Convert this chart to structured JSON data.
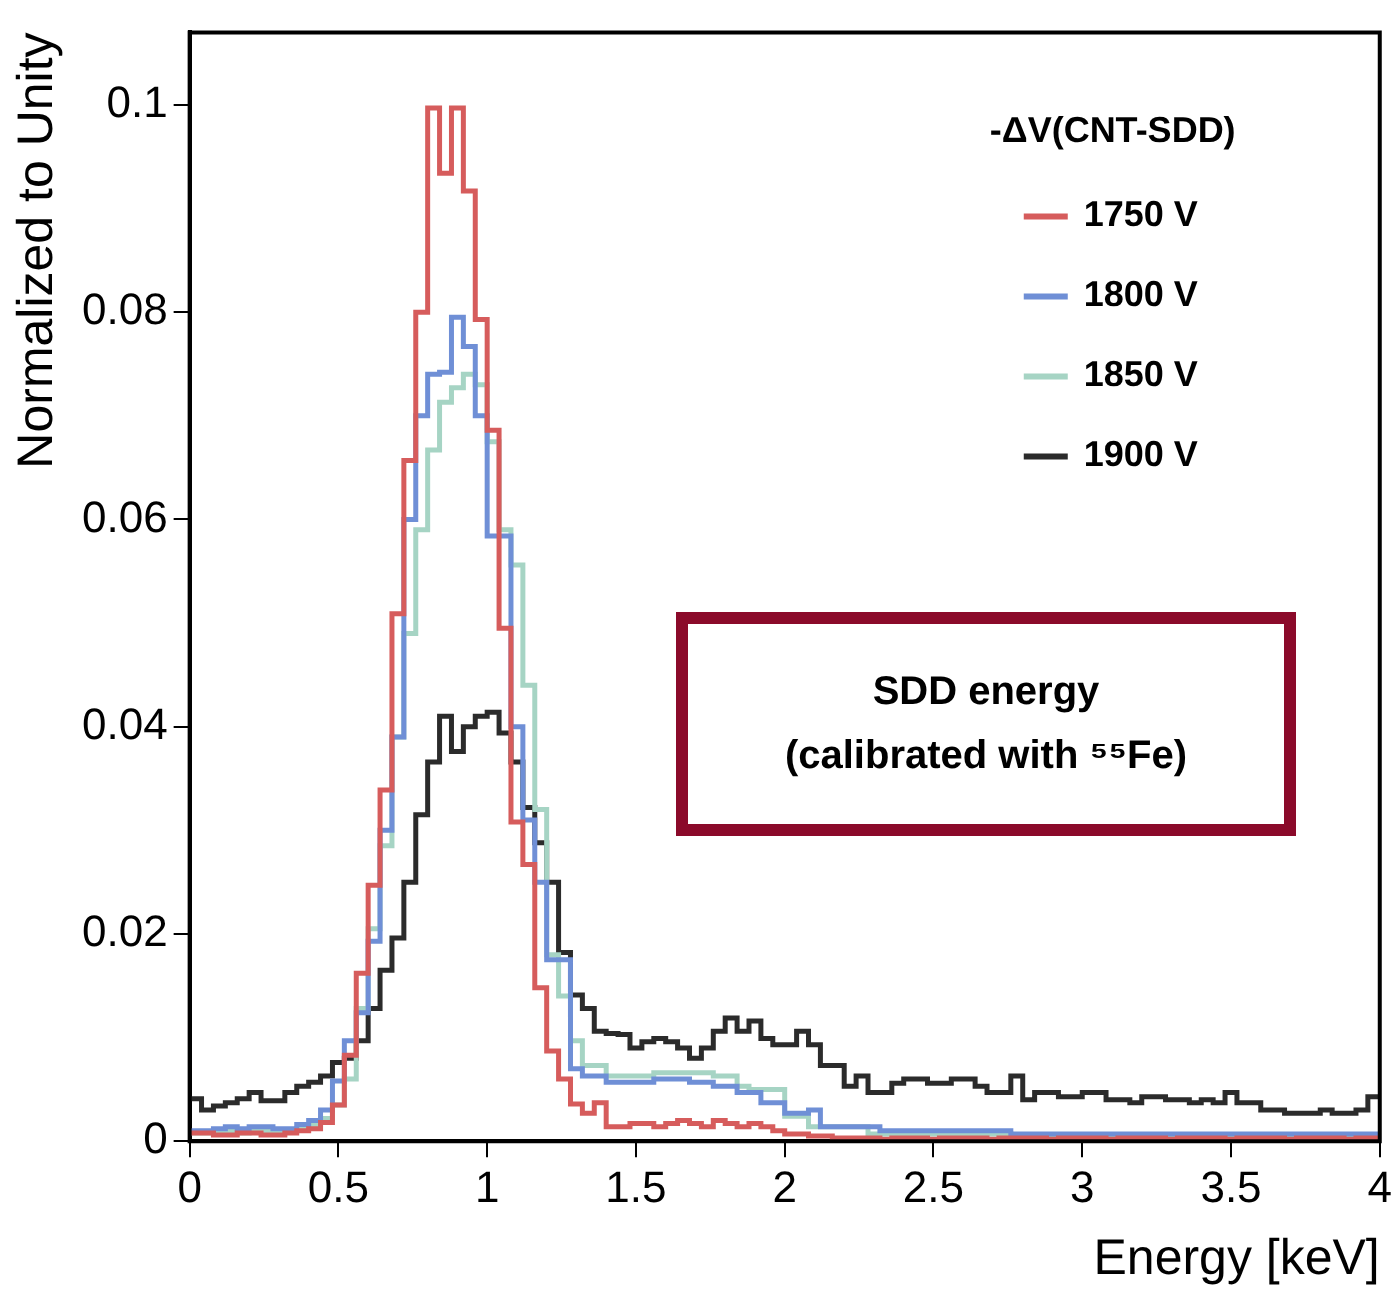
{
  "chart_data": {
    "type": "histogram",
    "xlabel": "Energy [keV]",
    "ylabel": "Normalized to Unity",
    "legend_title": "-ΔV(CNT-SDD)",
    "legend": "top right",
    "annotations": [
      "SDD energy",
      "(calibrated with ⁵⁵Fe)"
    ],
    "xlim": [
      0,
      4
    ],
    "xticks": [
      0,
      0.5,
      1,
      1.5,
      2,
      2.5,
      3,
      3.5,
      4
    ],
    "ylim": [
      0,
      0.107
    ],
    "yticks": [
      0,
      0.02,
      0.04,
      0.06,
      0.08,
      0.1
    ],
    "bins": [
      0,
      0.04,
      0.08,
      0.12,
      0.16,
      0.2,
      0.24,
      0.28,
      0.32,
      0.36,
      0.4,
      0.44,
      0.48,
      0.52,
      0.56,
      0.6,
      0.64,
      0.68,
      0.72,
      0.76,
      0.8,
      0.84,
      0.88,
      0.92,
      0.96,
      1,
      1.04,
      1.08,
      1.12,
      1.16,
      1.2,
      1.24,
      1.28,
      1.32,
      1.36,
      1.4,
      1.44,
      1.48,
      1.52,
      1.56,
      1.6,
      1.64,
      1.68,
      1.72,
      1.76,
      1.8,
      1.84,
      1.88,
      1.92,
      1.96,
      2,
      2.04,
      2.08,
      2.12,
      2.16,
      2.2,
      2.24,
      2.28,
      2.32,
      2.36,
      2.4,
      2.44,
      2.48,
      2.52,
      2.56,
      2.6,
      2.64,
      2.68,
      2.72,
      2.76,
      2.8,
      2.84,
      2.88,
      2.92,
      2.96,
      3,
      3.04,
      3.08,
      3.12,
      3.16,
      3.2,
      3.24,
      3.28,
      3.32,
      3.36,
      3.4,
      3.44,
      3.48,
      3.52,
      3.56,
      3.6,
      3.64,
      3.68,
      3.72,
      3.76,
      3.8,
      3.84,
      3.88,
      3.92,
      3.96,
      4
    ],
    "series": [
      {
        "name": "1750 V",
        "color": "#d65c5c",
        "values": [
          0.0008,
          0.0008,
          0.0006,
          0.0006,
          0.0008,
          0.0008,
          0.0006,
          0.0006,
          0.0008,
          0.001,
          0.0012,
          0.0018,
          0.0035,
          0.0083,
          0.0162,
          0.0247,
          0.0339,
          0.0509,
          0.0657,
          0.08,
          0.0997,
          0.0934,
          0.0997,
          0.0917,
          0.0793,
          0.0686,
          0.0495,
          0.0308,
          0.0267,
          0.0148,
          0.0087,
          0.006,
          0.0036,
          0.0027,
          0.0037,
          0.0014,
          0.0014,
          0.0017,
          0.0017,
          0.0014,
          0.0017,
          0.002,
          0.0017,
          0.0014,
          0.002,
          0.0017,
          0.0014,
          0.0017,
          0.0014,
          0.001,
          0.0007,
          0.0007,
          0.0005,
          0.0005,
          0.0003,
          0.0003,
          0.0003,
          0.0003,
          0.0002,
          0.0003,
          0.0003,
          0.0003,
          0.0002,
          0.0003,
          0.0003,
          0.0003,
          0.0003,
          0.0002,
          0.0003,
          0.0003,
          0.0003,
          0.0003,
          0.0002,
          0.0003,
          0.0003,
          0.0003,
          0.0003,
          0.0002,
          0.0003,
          0.0003,
          0.0003,
          0.0003,
          0.0002,
          0.0003,
          0.0003,
          0.0003,
          0.0003,
          0.0002,
          0.0003,
          0.0003,
          0.0003,
          0.0003,
          0.0002,
          0.0003,
          0.0003,
          0.0003,
          0.0003,
          0.0002,
          0.0003,
          0.0003
        ]
      },
      {
        "name": "1800 V",
        "color": "#6f8fd6",
        "values": [
          0.001,
          0.001,
          0.0012,
          0.0014,
          0.0012,
          0.0014,
          0.0014,
          0.0012,
          0.0012,
          0.0016,
          0.002,
          0.003,
          0.0058,
          0.0097,
          0.0124,
          0.0193,
          0.03,
          0.039,
          0.06,
          0.07,
          0.074,
          0.0742,
          0.0795,
          0.0767,
          0.07,
          0.0584,
          0.0584,
          0.04,
          0.031,
          0.025,
          0.0175,
          0.0175,
          0.007,
          0.0063,
          0.0063,
          0.0057,
          0.0057,
          0.0057,
          0.0057,
          0.006,
          0.006,
          0.006,
          0.0057,
          0.0057,
          0.0053,
          0.0053,
          0.0047,
          0.0047,
          0.0037,
          0.0037,
          0.0027,
          0.0027,
          0.003,
          0.0014,
          0.0014,
          0.0014,
          0.0014,
          0.0014,
          0.001,
          0.001,
          0.001,
          0.001,
          0.001,
          0.001,
          0.001,
          0.001,
          0.001,
          0.001,
          0.001,
          0.0007,
          0.0007,
          0.0007,
          0.0007,
          0.0007,
          0.0007,
          0.0007,
          0.0007,
          0.0007,
          0.0007,
          0.0007,
          0.0007,
          0.0007,
          0.0007,
          0.0007,
          0.0007,
          0.0007,
          0.0007,
          0.0007,
          0.0007,
          0.0007,
          0.0007,
          0.0007,
          0.0007,
          0.0007,
          0.0007,
          0.0007,
          0.0007,
          0.0007,
          0.0007,
          0.0007
        ]
      },
      {
        "name": "1850 V",
        "color": "#a6d4c4",
        "values": [
          0.0008,
          0.0008,
          0.0008,
          0.001,
          0.0008,
          0.001,
          0.001,
          0.001,
          0.001,
          0.0012,
          0.0016,
          0.0022,
          0.0035,
          0.006,
          0.0128,
          0.0205,
          0.0285,
          0.039,
          0.049,
          0.059,
          0.0667,
          0.0713,
          0.0727,
          0.074,
          0.073,
          0.0675,
          0.059,
          0.0556,
          0.044,
          0.032,
          0.018,
          0.014,
          0.0097,
          0.0073,
          0.0073,
          0.0063,
          0.0063,
          0.0063,
          0.0063,
          0.0066,
          0.0066,
          0.0066,
          0.0066,
          0.0066,
          0.0063,
          0.0063,
          0.0053,
          0.005,
          0.005,
          0.005,
          0.0024,
          0.0024,
          0.0014,
          0.0014,
          0.0014,
          0.0014,
          0.0014,
          0.0007,
          0.0007,
          0.0007,
          0.0007,
          0.0007,
          0.0007,
          0.0007,
          0.0007,
          0.0007,
          0.0007,
          0.0007,
          0.0007,
          0.0005,
          0.0005,
          0.0005,
          0.0005,
          0.0005,
          0.0005,
          0.0005,
          0.0005,
          0.0005,
          0.0005,
          0.0005,
          0.0005,
          0.0005,
          0.0005,
          0.0005,
          0.0005,
          0.0005,
          0.0005,
          0.0005,
          0.0005,
          0.0005,
          0.0005,
          0.0005,
          0.0005,
          0.0005,
          0.0005,
          0.0005,
          0.0005,
          0.0005,
          0.0005,
          0.0005
        ]
      },
      {
        "name": "1900 V",
        "color": "#2b2b2b",
        "values": [
          0.0041,
          0.003,
          0.0034,
          0.0037,
          0.0041,
          0.0047,
          0.0039,
          0.0039,
          0.0047,
          0.0053,
          0.0057,
          0.0063,
          0.0076,
          0.008,
          0.0097,
          0.0128,
          0.0165,
          0.0196,
          0.025,
          0.0315,
          0.0366,
          0.041,
          0.0376,
          0.04,
          0.041,
          0.0414,
          0.0394,
          0.0366,
          0.0322,
          0.0288,
          0.025,
          0.0182,
          0.0141,
          0.0128,
          0.0106,
          0.0104,
          0.0103,
          0.009,
          0.0096,
          0.0099,
          0.0096,
          0.009,
          0.008,
          0.009,
          0.0106,
          0.0119,
          0.0106,
          0.0116,
          0.0099,
          0.0093,
          0.0093,
          0.0106,
          0.0093,
          0.0073,
          0.0073,
          0.0053,
          0.0063,
          0.0047,
          0.0047,
          0.0056,
          0.006,
          0.006,
          0.0056,
          0.0056,
          0.006,
          0.006,
          0.0053,
          0.0047,
          0.0047,
          0.0063,
          0.004,
          0.0047,
          0.0047,
          0.0043,
          0.0043,
          0.0047,
          0.0047,
          0.004,
          0.004,
          0.0037,
          0.0043,
          0.0043,
          0.004,
          0.004,
          0.0037,
          0.004,
          0.0037,
          0.0047,
          0.0037,
          0.0037,
          0.003,
          0.003,
          0.0027,
          0.0027,
          0.0027,
          0.003,
          0.0027,
          0.0027,
          0.003,
          0.0043
        ]
      }
    ]
  }
}
